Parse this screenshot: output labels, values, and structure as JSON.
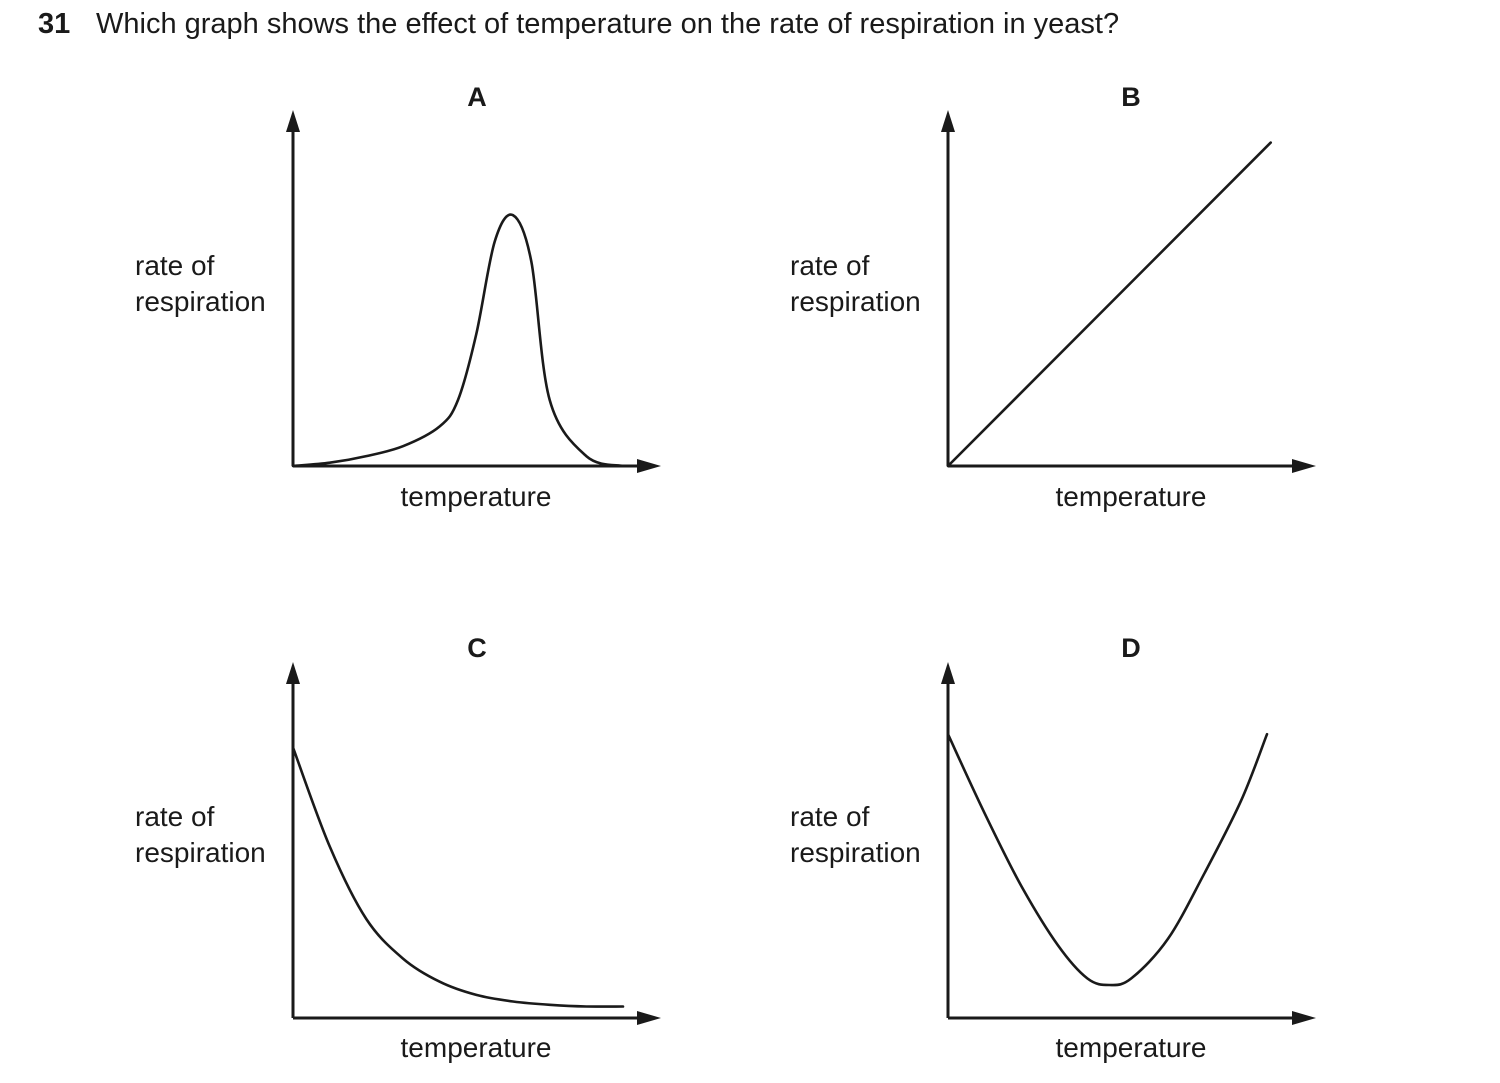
{
  "question": {
    "number": "31",
    "text": "Which graph shows the effect of temperature on the rate of respiration in yeast?"
  },
  "chart_data": [
    {
      "type": "line",
      "label": "A",
      "xlabel": "temperature",
      "ylabel_lines": [
        "rate of",
        "respiration"
      ],
      "axis_ticks": "none",
      "curve": "rises slowly, sharp peak, then falls steeply",
      "x": [
        0,
        10,
        20,
        30,
        40,
        45,
        50,
        55,
        60,
        65,
        70,
        80,
        90
      ],
      "y": [
        0,
        1,
        3,
        6,
        12,
        20,
        40,
        68,
        76,
        62,
        20,
        3,
        0
      ]
    },
    {
      "type": "line",
      "label": "B",
      "xlabel": "temperature",
      "ylabel_lines": [
        "rate of",
        "respiration"
      ],
      "axis_ticks": "none",
      "curve": "straight line rising from origin",
      "x": [
        0,
        88
      ],
      "y": [
        0,
        98
      ]
    },
    {
      "type": "line",
      "label": "C",
      "xlabel": "temperature",
      "ylabel_lines": [
        "rate of",
        "respiration"
      ],
      "axis_ticks": "none",
      "curve": "falls steeply from high value then levels off",
      "x": [
        0,
        10,
        20,
        30,
        40,
        50,
        60,
        70,
        80,
        90
      ],
      "y": [
        82,
        52,
        30,
        18,
        11,
        7,
        5,
        4,
        3.5,
        3.5
      ]
    },
    {
      "type": "line",
      "label": "D",
      "xlabel": "temperature",
      "ylabel_lines": [
        "rate of",
        "respiration"
      ],
      "axis_ticks": "none",
      "curve": "U-shaped: falls to a minimum then rises",
      "x": [
        0,
        10,
        20,
        30,
        38,
        44,
        50,
        60,
        70,
        80,
        87
      ],
      "y": [
        86,
        62,
        40,
        22,
        12,
        10,
        12,
        24,
        44,
        66,
        86
      ]
    }
  ]
}
